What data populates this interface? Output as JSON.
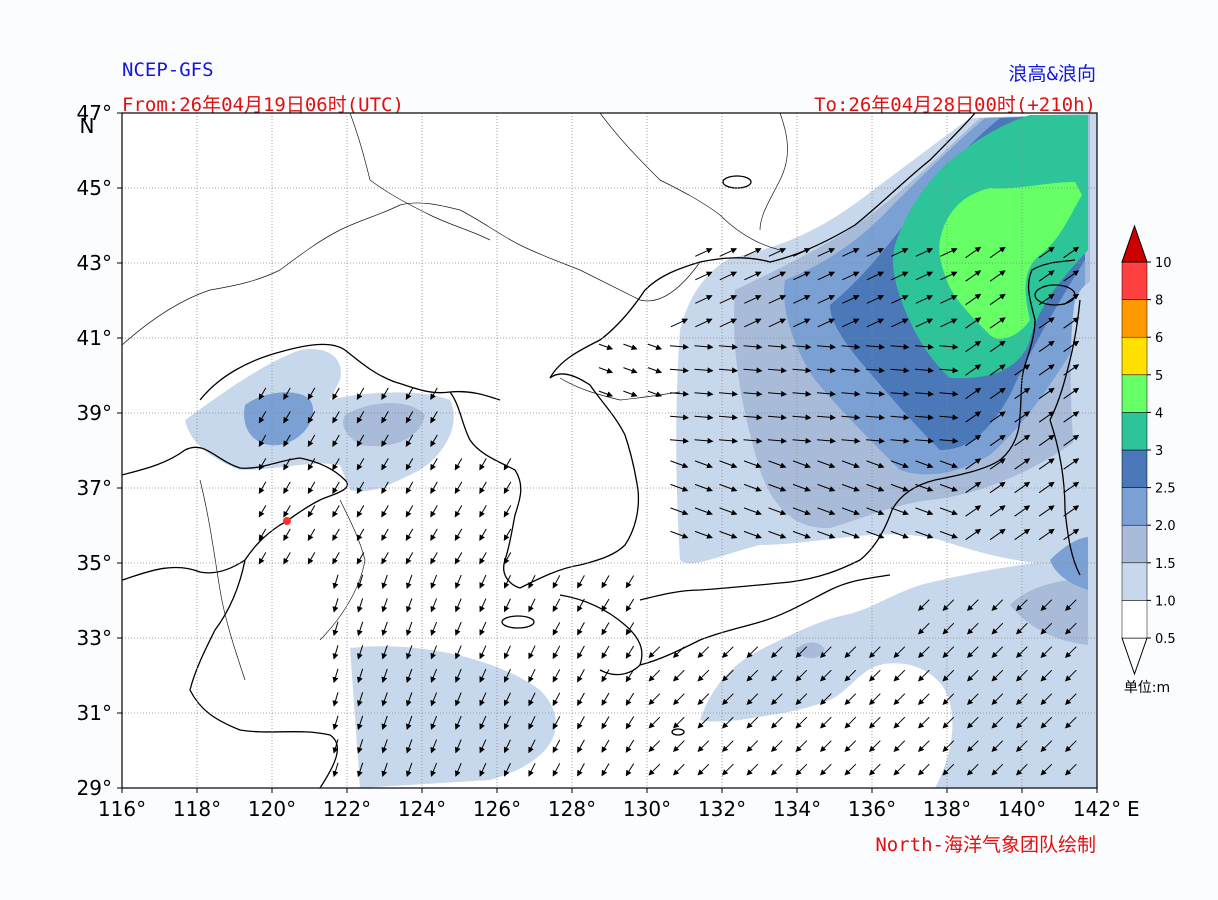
{
  "header": {
    "model": "NCEP-GFS",
    "product": "浪高&浪向",
    "from": "From:26年04月19日06时(UTC)",
    "to": "To:26年04月28日00时(+210h)",
    "credit": "North-海洋气象团队绘制"
  },
  "axes": {
    "lon_ticks": [
      "116°",
      "118°",
      "120°",
      "122°",
      "124°",
      "126°",
      "128°",
      "130°",
      "132°",
      "134°",
      "136°",
      "138°",
      "140°",
      "142°"
    ],
    "lat_ticks": [
      "29°",
      "31°",
      "33°",
      "35°",
      "37°",
      "39°",
      "41°",
      "43°",
      "45°",
      "47°"
    ],
    "lon_suffix": "E",
    "lat_suffix": "N",
    "lon_range": [
      116,
      142
    ],
    "lat_range": [
      29,
      47
    ]
  },
  "colorbar": {
    "unit_label": "单位:m",
    "levels": [
      "0.5",
      "1.0",
      "1.5",
      "2.0",
      "2.5",
      "3",
      "4",
      "5",
      "6",
      "8",
      "10"
    ],
    "colors": [
      "#ffffff",
      "#c8d8ec",
      "#a8bcda",
      "#7ba0d4",
      "#4a78b8",
      "#2ec49a",
      "#66ff66",
      "#ffe000",
      "#ff9900",
      "#ff4040",
      "#cc0000"
    ]
  },
  "map": {
    "grid_style": "dotted",
    "arrow_field": "wave direction arrows over sea",
    "contour_field": "significant wave height (m)"
  }
}
